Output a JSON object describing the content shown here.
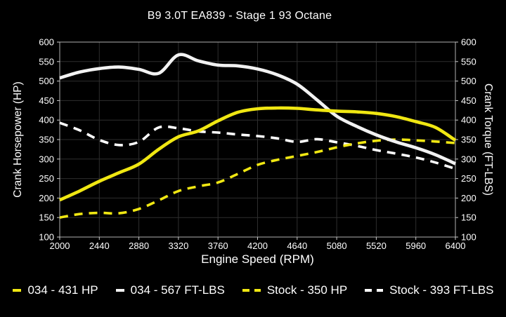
{
  "title": "B9 3.0T EA839 - Stage 1 93 Octane",
  "colors": {
    "background": "#000000",
    "accent_yellow": "#f0e712",
    "curve_white": "#f2f2f2",
    "grid": "#2e2e2e",
    "plot_border": "#b0b0b0",
    "tick_mark": "#cccccc",
    "text": "#ffffff"
  },
  "chart_data": {
    "type": "line",
    "title": "B9 3.0T EA839 - Stage 1 93 Octane",
    "x_label": "Engine Speed (RPM)",
    "y_left_label": "Crank Horsepower (HP)",
    "y_right_label": "Crank Torque (FT-LBS)",
    "x_range": [
      2000,
      6400
    ],
    "y_range": [
      100,
      600
    ],
    "x_ticks": [
      2000,
      2440,
      2880,
      3320,
      3760,
      4200,
      4640,
      5080,
      5520,
      5960,
      6400
    ],
    "y_ticks": [
      100,
      150,
      200,
      250,
      300,
      350,
      400,
      450,
      500,
      550,
      600
    ],
    "grid": true,
    "legend_position": "bottom",
    "x": [
      2000,
      2220,
      2440,
      2660,
      2880,
      3100,
      3320,
      3540,
      3760,
      3980,
      4200,
      4420,
      4640,
      4860,
      5080,
      5300,
      5520,
      5740,
      5960,
      6180,
      6400
    ],
    "series": [
      {
        "name": "Stock - 393 FT-LBS",
        "axis": "right",
        "color": "#ffffff",
        "style": "dashed",
        "values": [
          393,
          374,
          349,
          336,
          344,
          381,
          379,
          371,
          368,
          363,
          359,
          353,
          344,
          351,
          343,
          334,
          323,
          314,
          304,
          291,
          275
        ]
      },
      {
        "name": "Stock - 350 HP",
        "axis": "left",
        "color": "#f0e712",
        "style": "dashed",
        "values": [
          150,
          159,
          162,
          161,
          172,
          194,
          218,
          230,
          240,
          262,
          285,
          298,
          308,
          318,
          330,
          340,
          347,
          350,
          348,
          345,
          341
        ]
      },
      {
        "name": "034 - 567 FT-LBS",
        "axis": "right",
        "color": "#f2f2f2",
        "style": "solid",
        "values": [
          508,
          523,
          532,
          536,
          530,
          520,
          567,
          552,
          541,
          539,
          531,
          516,
          492,
          452,
          410,
          384,
          362,
          344,
          329,
          311,
          288
        ]
      },
      {
        "name": "034 - 431 HP",
        "axis": "left",
        "color": "#f0e712",
        "style": "solid",
        "values": [
          195,
          218,
          243,
          265,
          287,
          325,
          357,
          372,
          398,
          420,
          429,
          431,
          430,
          426,
          423,
          421,
          417,
          409,
          396,
          381,
          348
        ]
      }
    ]
  },
  "legend": {
    "items": [
      {
        "label": "034 - 431 HP",
        "color": "#f0e712",
        "style": "solid"
      },
      {
        "label": "034 - 567 FT-LBS",
        "color": "#f2f2f2",
        "style": "solid"
      },
      {
        "label": "Stock - 350 HP",
        "color": "#f0e712",
        "style": "dashed"
      },
      {
        "label": "Stock - 393 FT-LBS",
        "color": "#ffffff",
        "style": "dashed"
      }
    ]
  }
}
